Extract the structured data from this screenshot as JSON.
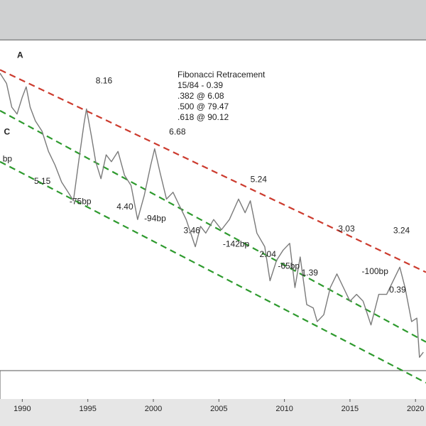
{
  "colors": {
    "price": "#7a7a7a",
    "upper_channel": "#cc3b2e",
    "lower_channel": "#2e9a2e",
    "text": "#222222",
    "background": "#ffffff",
    "top_band": "#cfd0d1"
  },
  "legend": {
    "title": "Fibonacci Retracement",
    "lines": [
      "15/84 - 0.39",
      ".382 @ 6.08",
      ".500 @ 79.47",
      ".618 @ 90.12"
    ]
  },
  "chart_data": {
    "type": "line",
    "title": "",
    "xlabel": "",
    "ylabel": "",
    "x_ticks": [
      "1990",
      "1995",
      "2000",
      "2005",
      "2010",
      "2015",
      "2020"
    ],
    "xlim": [
      1988.3,
      2020.8
    ],
    "ylim": [
      0.2,
      9.8
    ],
    "grid": false,
    "series": [
      {
        "values": [
          {
            "x": 1988.3,
            "y": 8.9
          },
          {
            "x": 1988.8,
            "y": 8.6
          },
          {
            "x": 1989.2,
            "y": 7.9
          },
          {
            "x": 1989.6,
            "y": 7.7
          },
          {
            "x": 1990.0,
            "y": 8.2
          },
          {
            "x": 1990.3,
            "y": 8.5
          },
          {
            "x": 1990.6,
            "y": 7.9
          },
          {
            "x": 1991.0,
            "y": 7.5
          },
          {
            "x": 1991.5,
            "y": 7.2
          },
          {
            "x": 1992.0,
            "y": 6.6
          },
          {
            "x": 1992.5,
            "y": 6.2
          },
          {
            "x": 1993.0,
            "y": 5.7
          },
          {
            "x": 1993.5,
            "y": 5.4
          },
          {
            "x": 1993.9,
            "y": 5.15
          },
          {
            "x": 1994.3,
            "y": 6.3
          },
          {
            "x": 1994.7,
            "y": 7.4
          },
          {
            "x": 1994.9,
            "y": 7.85
          },
          {
            "x": 1995.3,
            "y": 7.0
          },
          {
            "x": 1995.6,
            "y": 6.3
          },
          {
            "x": 1996.0,
            "y": 5.8
          },
          {
            "x": 1996.4,
            "y": 6.5
          },
          {
            "x": 1996.8,
            "y": 6.3
          },
          {
            "x": 1997.3,
            "y": 6.6
          },
          {
            "x": 1997.8,
            "y": 5.9
          },
          {
            "x": 1998.3,
            "y": 5.6
          },
          {
            "x": 1998.8,
            "y": 4.6
          },
          {
            "x": 1999.3,
            "y": 5.3
          },
          {
            "x": 1999.8,
            "y": 6.2
          },
          {
            "x": 2000.1,
            "y": 6.68
          },
          {
            "x": 2000.5,
            "y": 6.0
          },
          {
            "x": 2001.0,
            "y": 5.2
          },
          {
            "x": 2001.5,
            "y": 5.4
          },
          {
            "x": 2002.0,
            "y": 5.0
          },
          {
            "x": 2002.5,
            "y": 4.6
          },
          {
            "x": 2003.2,
            "y": 3.8
          },
          {
            "x": 2003.6,
            "y": 4.4
          },
          {
            "x": 2004.0,
            "y": 4.2
          },
          {
            "x": 2004.6,
            "y": 4.6
          },
          {
            "x": 2005.2,
            "y": 4.3
          },
          {
            "x": 2005.8,
            "y": 4.6
          },
          {
            "x": 2006.5,
            "y": 5.2
          },
          {
            "x": 2007.0,
            "y": 4.8
          },
          {
            "x": 2007.4,
            "y": 5.15
          },
          {
            "x": 2007.9,
            "y": 4.2
          },
          {
            "x": 2008.5,
            "y": 3.8
          },
          {
            "x": 2008.9,
            "y": 2.8
          },
          {
            "x": 2009.4,
            "y": 3.4
          },
          {
            "x": 2009.9,
            "y": 3.7
          },
          {
            "x": 2010.4,
            "y": 3.9
          },
          {
            "x": 2010.8,
            "y": 2.6
          },
          {
            "x": 2011.2,
            "y": 3.5
          },
          {
            "x": 2011.7,
            "y": 2.1
          },
          {
            "x": 2012.2,
            "y": 2.0
          },
          {
            "x": 2012.5,
            "y": 1.6
          },
          {
            "x": 2013.0,
            "y": 1.8
          },
          {
            "x": 2013.5,
            "y": 2.6
          },
          {
            "x": 2014.0,
            "y": 3.0
          },
          {
            "x": 2014.5,
            "y": 2.6
          },
          {
            "x": 2015.0,
            "y": 2.2
          },
          {
            "x": 2015.5,
            "y": 2.4
          },
          {
            "x": 2016.0,
            "y": 2.2
          },
          {
            "x": 2016.6,
            "y": 1.5
          },
          {
            "x": 2017.2,
            "y": 2.4
          },
          {
            "x": 2017.8,
            "y": 2.4
          },
          {
            "x": 2018.3,
            "y": 2.8
          },
          {
            "x": 2018.8,
            "y": 3.2
          },
          {
            "x": 2019.2,
            "y": 2.6
          },
          {
            "x": 2019.7,
            "y": 1.6
          },
          {
            "x": 2020.1,
            "y": 1.7
          },
          {
            "x": 2020.3,
            "y": 0.55
          },
          {
            "x": 2020.6,
            "y": 0.7
          }
        ]
      }
    ],
    "channels": [
      {
        "style": "dashed",
        "color": "#cc3b2e",
        "points": [
          {
            "x": 1988.3,
            "y": 9.0
          },
          {
            "x": 2020.8,
            "y": 3.05
          }
        ]
      },
      {
        "style": "dashed",
        "color": "#2e9a2e",
        "points": [
          {
            "x": 1988.3,
            "y": 7.8
          },
          {
            "x": 2020.8,
            "y": 1.0
          }
        ]
      },
      {
        "style": "dashed",
        "color": "#2e9a2e",
        "points": [
          {
            "x": 1988.3,
            "y": 6.3
          },
          {
            "x": 2020.8,
            "y": -0.2
          }
        ]
      }
    ],
    "points": [
      {
        "text": "A",
        "x": 1989.6,
        "y": 9.35,
        "bold": true
      },
      {
        "text": "C",
        "x": 1988.6,
        "y": 7.1,
        "bold": true
      },
      {
        "text": "8.16",
        "x": 1995.6,
        "y": 8.6
      },
      {
        "text": "6.68",
        "x": 2001.2,
        "y": 7.1
      },
      {
        "text": "5.24",
        "x": 2007.4,
        "y": 5.7
      },
      {
        "text": "3.03",
        "x": 2014.1,
        "y": 4.25
      },
      {
        "text": "3.24",
        "x": 2018.3,
        "y": 4.2
      },
      {
        "text": "5.15",
        "x": 1990.9,
        "y": 5.65
      },
      {
        "text": "4.40",
        "x": 1997.2,
        "y": 4.9
      },
      {
        "text": "3.46",
        "x": 2002.3,
        "y": 4.2
      },
      {
        "text": "2.04",
        "x": 2008.1,
        "y": 3.5
      },
      {
        "text": "1.39",
        "x": 2011.3,
        "y": 2.95
      },
      {
        "text": "0.39",
        "x": 2018.0,
        "y": 2.45
      },
      {
        "text": "bp",
        "x": 1988.5,
        "y": 6.3
      },
      {
        "text": "-75bp",
        "x": 1993.6,
        "y": 5.05
      },
      {
        "text": "-94bp",
        "x": 1999.3,
        "y": 4.55
      },
      {
        "text": "-142bp",
        "x": 2005.3,
        "y": 3.8
      },
      {
        "text": "-65bp",
        "x": 2009.5,
        "y": 3.15
      },
      {
        "text": "-100bp",
        "x": 2015.9,
        "y": 3.0
      }
    ]
  }
}
